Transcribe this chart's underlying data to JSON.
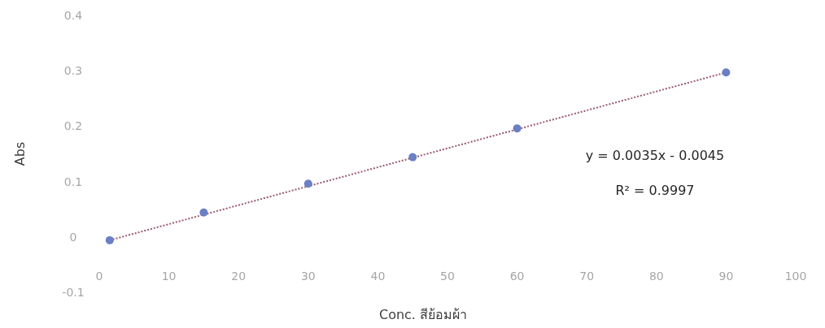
{
  "chart_data": {
    "type": "scatter",
    "xlabel": "Conc. สีย้อมผ้า",
    "ylabel": "Abs",
    "xlim": [
      0,
      100
    ],
    "xticks": [
      0,
      10,
      20,
      30,
      40,
      50,
      60,
      70,
      80,
      90,
      100
    ],
    "ylim": [
      -0.1,
      0.4
    ],
    "yticks": [
      {
        "value": -0.1,
        "label": "-0.1"
      },
      0,
      0.1,
      0.2,
      0.3,
      0.4
    ],
    "grid": false,
    "series": [
      {
        "type": "line",
        "color": "#9a5a6a",
        "x": [
          1.5,
          90
        ],
        "values": [
          -0.006,
          0.297
        ],
        "line_style": "dotted",
        "marker": "none"
      },
      {
        "color": "#6b7fc4",
        "x": [
          1.5,
          15,
          30,
          45,
          60,
          90
        ],
        "values": [
          -0.006,
          0.044,
          0.096,
          0.144,
          0.196,
          0.297
        ],
        "marker": "circle"
      }
    ],
    "annotations": [
      "y = 0.0035x - 0.0045",
      "R² = 0.9997"
    ]
  }
}
